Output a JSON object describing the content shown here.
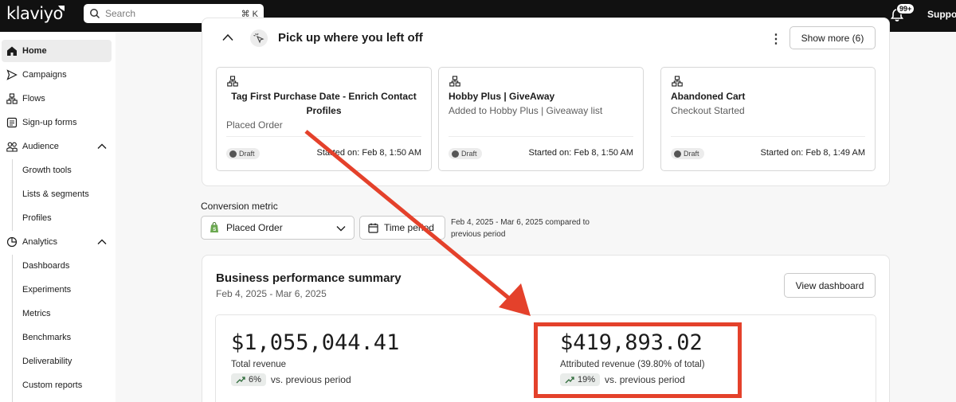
{
  "topbar": {
    "logo": "klaviyo",
    "search_placeholder": "Search",
    "search_shortcut": "⌘ K",
    "notification_count": "99+",
    "support_label": "Support"
  },
  "sidebar": {
    "home": "Home",
    "campaigns": "Campaigns",
    "flows": "Flows",
    "signup_forms": "Sign-up forms",
    "audience": "Audience",
    "audience_sub": [
      "Growth tools",
      "Lists & segments",
      "Profiles"
    ],
    "analytics": "Analytics",
    "analytics_sub": [
      "Dashboards",
      "Experiments",
      "Metrics",
      "Benchmarks",
      "Deliverability",
      "Custom reports"
    ]
  },
  "pickup": {
    "title": "Pick up where you left off",
    "show_more": "Show more (6)",
    "cards": [
      {
        "title": "Tag First Purchase Date - Enrich Contact Profiles",
        "subtitle": "Placed Order",
        "status": "Draft",
        "started": "Started on: Feb 8, 1:50 AM"
      },
      {
        "title": "Hobby Plus | GiveAway",
        "subtitle": "Added to Hobby Plus | Giveaway list",
        "status": "Draft",
        "started": "Started on: Feb 8, 1:50 AM"
      },
      {
        "title": "Abandoned Cart",
        "subtitle": "Checkout Started",
        "status": "Draft",
        "started": "Started on: Feb 8, 1:49 AM"
      }
    ]
  },
  "filters": {
    "metric_label": "Conversion metric",
    "metric_value": "Placed Order",
    "time_period": "Time period",
    "date_range": "Feb 4, 2025 - Mar 6, 2025 compared to",
    "date_range_2": "previous period"
  },
  "summary": {
    "title": "Business performance summary",
    "date": "Feb 4, 2025 - Mar 6, 2025",
    "view_dashboard": "View dashboard",
    "total_revenue": "$1,055,044.41",
    "total_label": "Total revenue",
    "total_change": "6%",
    "total_change_suffix": "vs. previous period",
    "attributed_revenue": "$419,893.02",
    "attributed_label": "Attributed revenue (39.80% of total)",
    "attributed_change": "19%",
    "attributed_change_suffix": "vs. previous period"
  },
  "colors": {
    "annotation_red": "#e4412b",
    "topbar": "#111111"
  }
}
